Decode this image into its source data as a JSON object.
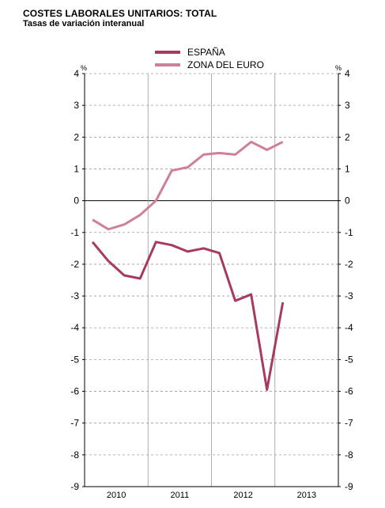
{
  "chart_data": {
    "type": "line",
    "title": "COSTES LABORALES UNITARIOS: TOTAL",
    "subtitle": "Tasas de variación interanual",
    "y_unit": "%",
    "ylim": [
      -9,
      4
    ],
    "yticks": [
      4,
      3,
      2,
      1,
      0,
      -1,
      -2,
      -3,
      -4,
      -5,
      -6,
      -7,
      -8,
      -9
    ],
    "x_years": [
      "2010",
      "2011",
      "2012",
      "2013"
    ],
    "x_range": [
      2010.0,
      2014.0
    ],
    "x": [
      2010.125,
      2010.375,
      2010.625,
      2010.875,
      2011.125,
      2011.375,
      2011.625,
      2011.875,
      2012.125,
      2012.375,
      2012.625,
      2012.875,
      2013.125
    ],
    "grid": "dashed horizontal",
    "legend_position": "top-center",
    "series": [
      {
        "name": "ESPAÑA",
        "color": "#a8395f",
        "values": [
          -1.3,
          -1.9,
          -2.35,
          -2.45,
          -1.3,
          -1.4,
          -1.6,
          -1.5,
          -1.65,
          -3.15,
          -2.95,
          -5.95,
          -3.2
        ]
      },
      {
        "name": "ZONA DEL EURO",
        "color": "#cf7f9b",
        "values": [
          -0.6,
          -0.9,
          -0.75,
          -0.45,
          0.0,
          0.95,
          1.05,
          1.45,
          1.5,
          1.45,
          1.85,
          1.6,
          1.85
        ]
      }
    ]
  }
}
